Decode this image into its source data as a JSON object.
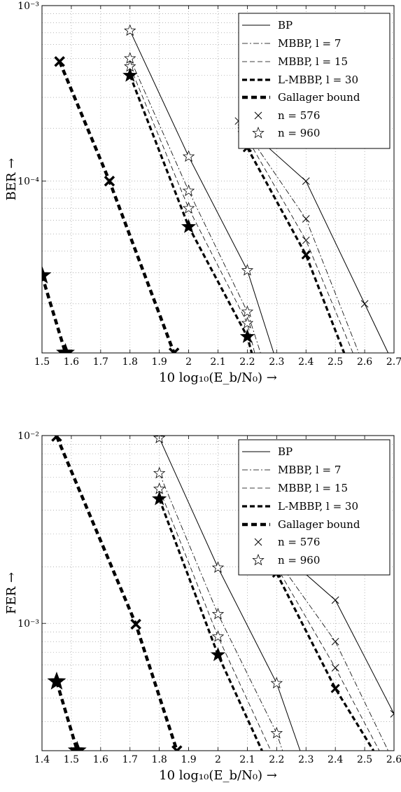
{
  "chart_data": [
    {
      "type": "line",
      "ylabel": "BER →",
      "xlabel": "10 log₁₀(E_b/N₀) →",
      "xlim": [
        1.5,
        2.7
      ],
      "ylim": [
        1.05e-05,
        0.001
      ],
      "yscale": "log",
      "grid": true,
      "legend_position": "top-right",
      "x_tick_labels": [
        "1.5",
        "1.6",
        "1.7",
        "1.8",
        "1.9",
        "2",
        "2.1",
        "2.2",
        "2.3",
        "2.4",
        "2.5",
        "2.6",
        "2.7"
      ],
      "y_tick_labels": [
        "10⁻³",
        "10⁻⁴"
      ],
      "legend": [
        {
          "label": "BP",
          "style": "bp"
        },
        {
          "label": "MBBP, l = 7",
          "style": "m7"
        },
        {
          "label": "MBBP, l = 15",
          "style": "m15"
        },
        {
          "label": "L-MBBP, l = 30",
          "style": "lm30"
        },
        {
          "label": "Gallager bound",
          "style": "gb"
        },
        {
          "label": "n = 576",
          "style": "x"
        },
        {
          "label": "n = 960",
          "style": "star"
        }
      ],
      "series": [
        {
          "name": "BP",
          "style": "bp",
          "marker": "x",
          "points": [
            [
              2.17,
              0.00022
            ],
            [
              2.4,
              0.0001
            ],
            [
              2.6,
              2e-05
            ],
            [
              2.68,
              1.05e-05
            ]
          ]
        },
        {
          "name": "MBBP, l = 7",
          "style": "m7",
          "marker": "x",
          "points": [
            [
              2.18,
              0.00021
            ],
            [
              2.4,
              6.1e-05
            ],
            [
              2.58,
              1.05e-05
            ]
          ]
        },
        {
          "name": "MBBP, l = 15",
          "style": "m15",
          "marker": "x",
          "points": [
            [
              2.18,
              0.0002
            ],
            [
              2.4,
              4.6e-05
            ],
            [
              2.56,
              1.05e-05
            ]
          ]
        },
        {
          "name": "L-MBBP, l = 30",
          "style": "lm30",
          "marker": "x",
          "points": [
            [
              2.2,
              0.000155
            ],
            [
              2.4,
              3.8e-05
            ],
            [
              2.53,
              1.05e-05
            ]
          ]
        },
        {
          "name": "BP",
          "style": "bp",
          "marker": "star",
          "points": [
            [
              1.8,
              0.00072
            ],
            [
              2.0,
              0.000138
            ],
            [
              2.2,
              3.1e-05
            ],
            [
              2.29,
              1.05e-05
            ]
          ]
        },
        {
          "name": "MBBP, l = 7",
          "style": "m7",
          "marker": "star",
          "points": [
            [
              1.8,
              0.0005
            ],
            [
              2.0,
              8.8e-05
            ],
            [
              2.2,
              1.8e-05
            ],
            [
              2.245,
              1.05e-05
            ]
          ]
        },
        {
          "name": "MBBP, l = 15",
          "style": "m15",
          "marker": "star",
          "points": [
            [
              1.8,
              0.00045
            ],
            [
              2.0,
              7e-05
            ],
            [
              2.2,
              1.55e-05
            ],
            [
              2.225,
              1.05e-05
            ]
          ]
        },
        {
          "name": "L-MBBP, l = 30",
          "style": "lm30",
          "marker": "star",
          "points": [
            [
              1.8,
              0.0004
            ],
            [
              2.0,
              5.5e-05
            ],
            [
              2.2,
              1.3e-05
            ],
            [
              2.215,
              1.05e-05
            ]
          ]
        },
        {
          "name": "Gallager bound",
          "style": "gb",
          "marker": "x",
          "points": [
            [
              1.56,
              0.00048
            ],
            [
              1.73,
              0.0001
            ],
            [
              1.95,
              1.05e-05
            ]
          ]
        },
        {
          "name": "Gallager bound",
          "style": "gb",
          "marker": "star",
          "points": [
            [
              1.5,
              2.9e-05
            ],
            [
              1.58,
              1.05e-05
            ]
          ]
        }
      ]
    },
    {
      "type": "line",
      "ylabel": "FER →",
      "xlabel": "10 log₁₀(E_b/N₀) →",
      "xlim": [
        1.4,
        2.6
      ],
      "ylim": [
        0.00021,
        0.01
      ],
      "yscale": "log",
      "grid": true,
      "legend_position": "top-right",
      "x_tick_labels": [
        "1.4",
        "1.5",
        "1.6",
        "1.7",
        "1.8",
        "1.9",
        "2",
        "2.1",
        "2.2",
        "2.3",
        "2.4",
        "2.5",
        "2.6"
      ],
      "y_tick_labels": [
        "10⁻²",
        "10⁻³"
      ],
      "legend": [
        {
          "label": "BP",
          "style": "bp"
        },
        {
          "label": "MBBP, l = 7",
          "style": "m7"
        },
        {
          "label": "MBBP, l = 15",
          "style": "m15"
        },
        {
          "label": "L-MBBP, l = 30",
          "style": "lm30"
        },
        {
          "label": "Gallager bound",
          "style": "gb"
        },
        {
          "label": "n = 576",
          "style": "x"
        },
        {
          "label": "n = 960",
          "style": "star"
        }
      ],
      "series": [
        {
          "name": "BP",
          "style": "bp",
          "marker": "x",
          "points": [
            [
              2.2,
              0.0025
            ],
            [
              2.4,
              0.00133
            ],
            [
              2.6,
              0.00033
            ]
          ]
        },
        {
          "name": "MBBP, l = 7",
          "style": "m7",
          "marker": "x",
          "points": [
            [
              2.2,
              0.0022
            ],
            [
              2.4,
              0.0008
            ],
            [
              2.58,
              0.00021
            ]
          ]
        },
        {
          "name": "MBBP, l = 15",
          "style": "m15",
          "marker": "x",
          "points": [
            [
              2.2,
              0.002
            ],
            [
              2.4,
              0.00058
            ],
            [
              2.55,
              0.00021
            ]
          ]
        },
        {
          "name": "L-MBBP, l = 30",
          "style": "lm30",
          "marker": "x",
          "points": [
            [
              2.2,
              0.00185
            ],
            [
              2.4,
              0.00045
            ],
            [
              2.53,
              0.00021
            ]
          ]
        },
        {
          "name": "BP",
          "style": "bp",
          "marker": "star",
          "points": [
            [
              1.8,
              0.0097
            ],
            [
              2.0,
              0.00198
            ],
            [
              2.2,
              0.00048
            ],
            [
              2.28,
              0.00021
            ]
          ]
        },
        {
          "name": "MBBP, l = 7",
          "style": "m7",
          "marker": "star",
          "points": [
            [
              1.8,
              0.0063
            ],
            [
              2.0,
              0.00112
            ],
            [
              2.2,
              0.00026
            ],
            [
              2.22,
              0.00021
            ]
          ]
        },
        {
          "name": "MBBP, l = 15",
          "style": "m15",
          "marker": "star",
          "points": [
            [
              1.8,
              0.0052
            ],
            [
              2.0,
              0.00085
            ],
            [
              2.18,
              0.00021
            ]
          ]
        },
        {
          "name": "L-MBBP, l = 30",
          "style": "lm30",
          "marker": "star",
          "points": [
            [
              1.8,
              0.0046
            ],
            [
              2.0,
              0.00068
            ],
            [
              2.15,
              0.00021
            ]
          ]
        },
        {
          "name": "Gallager bound",
          "style": "gb",
          "marker": "x",
          "points": [
            [
              1.45,
              0.0099
            ],
            [
              1.72,
              0.00099
            ],
            [
              1.86,
              0.00021
            ]
          ]
        },
        {
          "name": "Gallager bound",
          "style": "gb",
          "marker": "star",
          "points": [
            [
              1.45,
              0.00049
            ],
            [
              1.52,
              0.00021
            ]
          ]
        }
      ]
    }
  ]
}
